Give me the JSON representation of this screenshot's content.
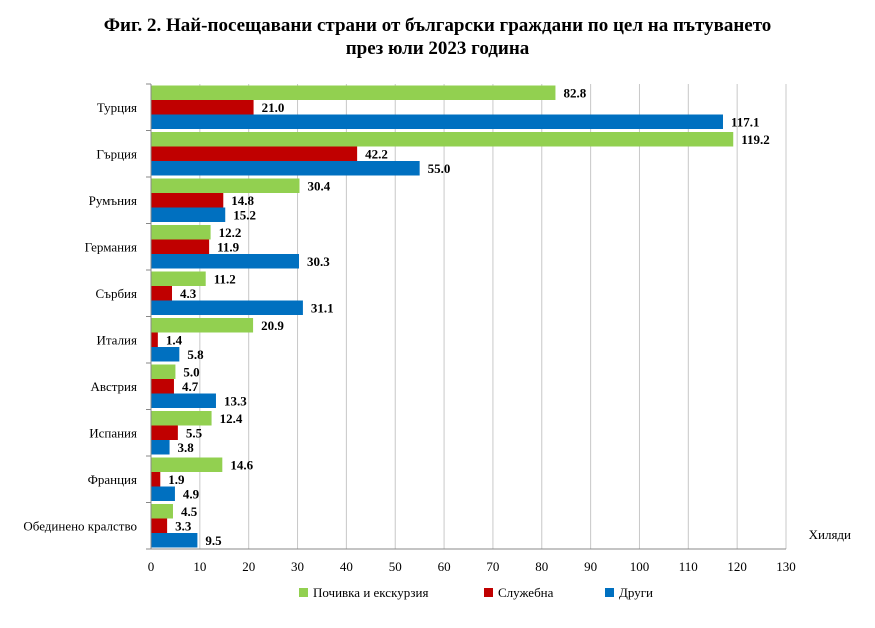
{
  "chart_data": {
    "type": "bar",
    "orientation": "horizontal",
    "title_line1": "Фиг. 2. Най-посещавани страни от български граждани по цел на пътуването",
    "title_line2": "през юли 2023 година",
    "unit_label": "Хиляди",
    "categories": [
      "Турция",
      "Гърция",
      "Румъния",
      "Германия",
      "Сърбия",
      "Италия",
      "Австрия",
      "Испания",
      "Франция",
      "Обединено кралство"
    ],
    "series": [
      {
        "name": "Почивка и екскурзия",
        "color": "#92d050",
        "values": [
          82.8,
          119.2,
          30.4,
          12.2,
          11.2,
          20.9,
          5.0,
          12.4,
          14.6,
          4.5
        ]
      },
      {
        "name": "Служебна",
        "color": "#c00000",
        "values": [
          21.0,
          42.2,
          14.8,
          11.9,
          4.3,
          1.4,
          4.7,
          5.5,
          1.9,
          3.3
        ]
      },
      {
        "name": "Други",
        "color": "#0070c0",
        "values": [
          117.1,
          55.0,
          15.2,
          30.3,
          31.1,
          5.8,
          13.3,
          3.8,
          4.9,
          9.5
        ]
      }
    ],
    "xlim": [
      0,
      130
    ],
    "xticks": [
      0,
      10,
      20,
      30,
      40,
      50,
      60,
      70,
      80,
      90,
      100,
      110,
      120,
      130
    ],
    "grid": true,
    "legend_position": "bottom"
  }
}
